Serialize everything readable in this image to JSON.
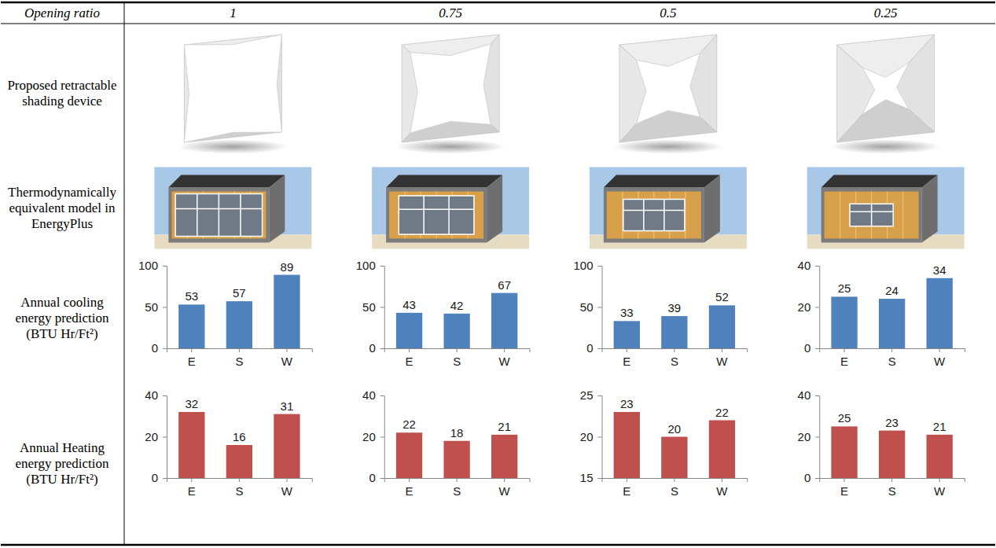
{
  "table": {
    "header": "Opening ratio",
    "columns": [
      1,
      0.75,
      0.5,
      0.25
    ],
    "rows": [
      {
        "label": "Proposed retractable shading device"
      },
      {
        "label": "Thermodynamically equivalent model in EnergyPlus"
      },
      {
        "label": "Annual cooling energy prediction",
        "unit": "(BTU Hr/Ft²)"
      },
      {
        "label": "Annual Heating energy prediction",
        "unit": "(BTU Hr/Ft²)"
      }
    ]
  },
  "chart_data": [
    {
      "type": "bar",
      "categories": [
        "E",
        "S",
        "W"
      ],
      "values": [
        53,
        57,
        89
      ],
      "color": "#4f81bd",
      "ylim": [
        0,
        100
      ],
      "yticks": [
        0,
        50,
        100
      ],
      "grid": false,
      "data_labels": true
    },
    {
      "type": "bar",
      "categories": [
        "E",
        "S",
        "W"
      ],
      "values": [
        43,
        42,
        67
      ],
      "color": "#4f81bd",
      "ylim": [
        0,
        100
      ],
      "yticks": [
        0,
        50,
        100
      ],
      "grid": false,
      "data_labels": true
    },
    {
      "type": "bar",
      "categories": [
        "E",
        "S",
        "W"
      ],
      "values": [
        33,
        39,
        52
      ],
      "color": "#4f81bd",
      "ylim": [
        0,
        100
      ],
      "yticks": [
        0,
        50,
        100
      ],
      "grid": false,
      "data_labels": true
    },
    {
      "type": "bar",
      "categories": [
        "E",
        "S",
        "W"
      ],
      "values": [
        25,
        24,
        34
      ],
      "color": "#4f81bd",
      "ylim": [
        0,
        40
      ],
      "yticks": [
        0,
        20,
        40
      ],
      "grid": false,
      "data_labels": true
    },
    {
      "type": "bar",
      "categories": [
        "E",
        "S",
        "W"
      ],
      "values": [
        32,
        16,
        31
      ],
      "color": "#c0504d",
      "ylim": [
        0,
        40
      ],
      "yticks": [
        0,
        20,
        40
      ],
      "grid": false,
      "data_labels": true
    },
    {
      "type": "bar",
      "categories": [
        "E",
        "S",
        "W"
      ],
      "values": [
        22,
        18,
        21
      ],
      "color": "#c0504d",
      "ylim": [
        0,
        40
      ],
      "yticks": [
        0,
        20,
        40
      ],
      "grid": false,
      "data_labels": true
    },
    {
      "type": "bar",
      "categories": [
        "E",
        "S",
        "W"
      ],
      "values": [
        23,
        20,
        22
      ],
      "color": "#c0504d",
      "ylim": [
        15,
        25
      ],
      "yticks": [
        15,
        20,
        25
      ],
      "grid": false,
      "data_labels": true
    },
    {
      "type": "bar",
      "categories": [
        "E",
        "S",
        "W"
      ],
      "values": [
        25,
        23,
        21
      ],
      "color": "#c0504d",
      "ylim": [
        0,
        40
      ],
      "yticks": [
        0,
        20,
        40
      ],
      "grid": false,
      "data_labels": true
    }
  ]
}
